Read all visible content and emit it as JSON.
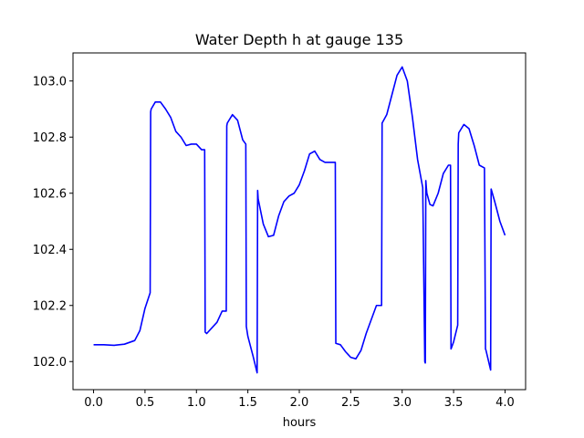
{
  "chart_data": {
    "type": "line",
    "title": "Water Depth h at gauge 135",
    "xlabel": "hours",
    "ylabel": "",
    "xlim": [
      -0.2,
      4.2
    ],
    "ylim": [
      101.9,
      103.1
    ],
    "xticks": [
      0.0,
      0.5,
      1.0,
      1.5,
      2.0,
      2.5,
      3.0,
      3.5,
      4.0
    ],
    "xtick_labels": [
      "0.0",
      "0.5",
      "1.0",
      "1.5",
      "2.0",
      "2.5",
      "3.0",
      "3.5",
      "4.0"
    ],
    "yticks": [
      102.0,
      102.2,
      102.4,
      102.6,
      102.8,
      103.0
    ],
    "ytick_labels": [
      "102.0",
      "102.2",
      "102.4",
      "102.6",
      "102.8",
      "103.0"
    ],
    "grid": false,
    "series": [
      {
        "color": "#0000ff",
        "x": [
          0.0,
          0.1,
          0.2,
          0.3,
          0.4,
          0.45,
          0.5,
          0.55,
          0.555,
          0.56,
          0.6,
          0.65,
          0.7,
          0.75,
          0.8,
          0.85,
          0.9,
          0.95,
          1.0,
          1.05,
          1.08,
          1.085,
          1.1,
          1.15,
          1.2,
          1.25,
          1.29,
          1.295,
          1.3,
          1.35,
          1.4,
          1.45,
          1.48,
          1.485,
          1.5,
          1.55,
          1.59,
          1.595,
          1.6,
          1.65,
          1.7,
          1.75,
          1.8,
          1.85,
          1.9,
          1.95,
          2.0,
          2.05,
          2.1,
          2.15,
          2.2,
          2.25,
          2.3,
          2.35,
          2.355,
          2.4,
          2.45,
          2.5,
          2.55,
          2.6,
          2.65,
          2.7,
          2.75,
          2.8,
          2.805,
          2.85,
          2.9,
          2.95,
          3.0,
          3.05,
          3.1,
          3.15,
          3.2,
          3.22,
          3.225,
          3.23,
          3.235,
          3.24,
          3.27,
          3.3,
          3.35,
          3.4,
          3.45,
          3.47,
          3.475,
          3.5,
          3.54,
          3.545,
          3.55,
          3.6,
          3.65,
          3.7,
          3.75,
          3.8,
          3.81,
          3.815,
          3.86,
          3.865,
          3.9,
          3.95,
          4.0
        ],
        "y": [
          102.06,
          102.06,
          102.058,
          102.062,
          102.075,
          102.11,
          102.19,
          102.245,
          102.89,
          102.9,
          102.925,
          102.925,
          102.9,
          102.87,
          102.82,
          102.8,
          102.77,
          102.775,
          102.775,
          102.755,
          102.755,
          102.105,
          102.1,
          102.12,
          102.14,
          102.18,
          102.18,
          102.84,
          102.85,
          102.88,
          102.86,
          102.79,
          102.775,
          102.125,
          102.09,
          102.02,
          101.96,
          102.61,
          102.58,
          102.49,
          102.445,
          102.45,
          102.52,
          102.57,
          102.59,
          102.6,
          102.63,
          102.68,
          102.74,
          102.75,
          102.72,
          102.71,
          102.71,
          102.71,
          102.065,
          102.06,
          102.035,
          102.015,
          102.01,
          102.04,
          102.1,
          102.15,
          102.2,
          102.2,
          102.85,
          102.88,
          102.95,
          103.02,
          103.05,
          103.0,
          102.87,
          102.72,
          102.62,
          102.0,
          101.995,
          102.645,
          102.62,
          102.6,
          102.56,
          102.555,
          102.6,
          102.67,
          102.7,
          102.7,
          102.045,
          102.07,
          102.13,
          102.775,
          102.815,
          102.845,
          102.83,
          102.77,
          102.7,
          102.69,
          102.045,
          102.04,
          101.97,
          102.615,
          102.57,
          102.5,
          102.45
        ]
      }
    ]
  }
}
